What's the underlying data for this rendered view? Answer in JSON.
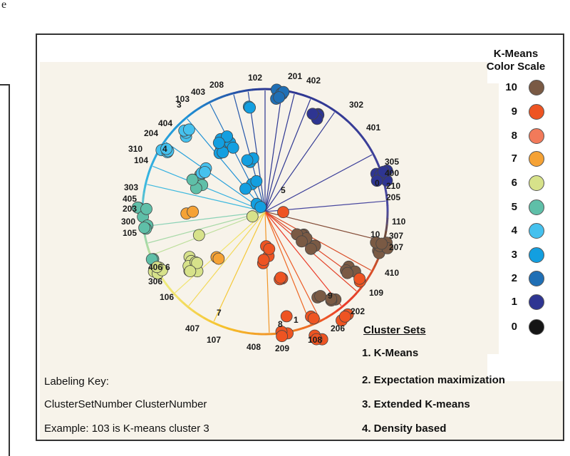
{
  "page_letter": "e",
  "scale_title": [
    "K-Means",
    "Color Scale"
  ],
  "color_scale": [
    {
      "label": "10",
      "color": "#7a5a44"
    },
    {
      "label": "9",
      "color": "#ee5422"
    },
    {
      "label": "8",
      "color": "#f27a5a"
    },
    {
      "label": "7",
      "color": "#f5a235"
    },
    {
      "label": "6",
      "color": "#d7e28a"
    },
    {
      "label": "5",
      "color": "#5fbfa8"
    },
    {
      "label": "4",
      "color": "#45c1ee"
    },
    {
      "label": "3",
      "color": "#139fe0"
    },
    {
      "label": "2",
      "color": "#1f6fb5"
    },
    {
      "label": "1",
      "color": "#2e3592"
    },
    {
      "label": "0",
      "color": "#151515"
    }
  ],
  "cluster_labels": [
    "102",
    "201",
    "402",
    "208",
    "403",
    "103",
    "3",
    "302",
    "401",
    "404",
    "204",
    "310",
    "4",
    "104",
    "305",
    "400",
    "0",
    "210",
    "205",
    "303",
    "405",
    "203",
    "300",
    "105",
    "110",
    "10",
    "307",
    "207",
    "406",
    "6",
    "306",
    "410",
    "106",
    "109",
    "9",
    "202",
    "7",
    "407",
    "107",
    "8",
    "408",
    "209",
    "108",
    "206",
    "1",
    "5"
  ],
  "cluster_sets": {
    "title": "Cluster Sets",
    "items": [
      "1. K-Means",
      "2. Expectation maximization",
      "3. Extended K-means",
      "4. Density based"
    ]
  },
  "labeling_key": {
    "title": "Labeling Key:",
    "format": "ClusterSetNumber ClusterNumber",
    "example": "Example: 103 is K-means cluster 3"
  }
}
